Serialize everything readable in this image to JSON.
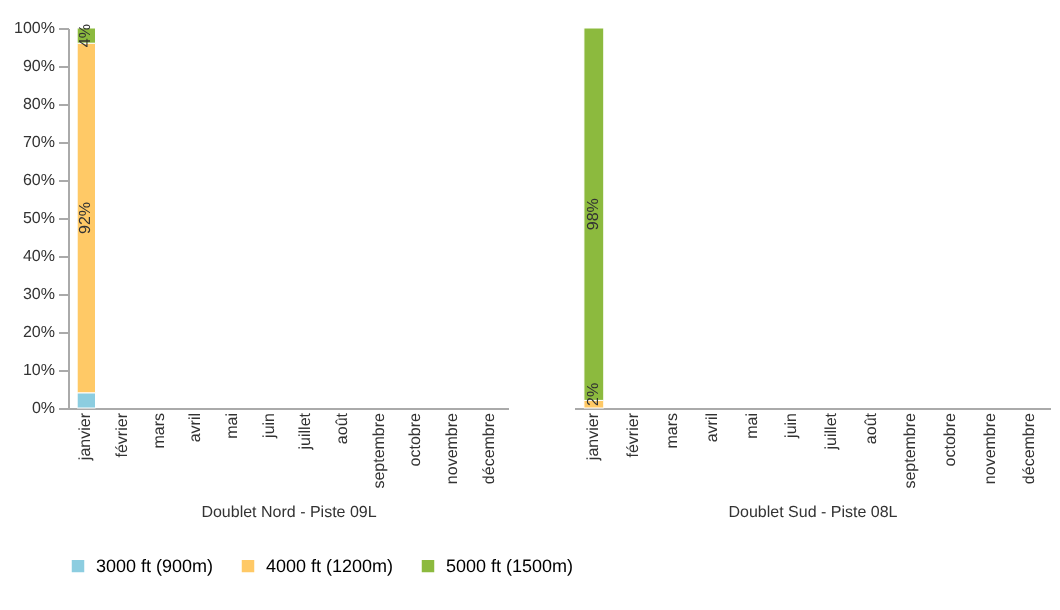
{
  "chart_data": [
    {
      "type": "bar",
      "stacked": true,
      "xlabel": "Doublet Nord - Piste 09L",
      "categories": [
        "janvier",
        "février",
        "mars",
        "avril",
        "mai",
        "juin",
        "juillet",
        "août",
        "septembre",
        "octobre",
        "novembre",
        "décembre"
      ],
      "series": [
        {
          "name": "3000 ft (900m)",
          "color": "#8ccde0",
          "values": [
            4,
            null,
            null,
            null,
            null,
            null,
            null,
            null,
            null,
            null,
            null,
            null
          ],
          "value_labels": [
            null,
            null,
            null,
            null,
            null,
            null,
            null,
            null,
            null,
            null,
            null,
            null
          ]
        },
        {
          "name": "4000 ft (1200m)",
          "color": "#ffc966",
          "values": [
            92,
            null,
            null,
            null,
            null,
            null,
            null,
            null,
            null,
            null,
            null,
            null
          ],
          "value_labels": [
            "92%",
            null,
            null,
            null,
            null,
            null,
            null,
            null,
            null,
            null,
            null,
            null
          ]
        },
        {
          "name": "5000 ft (1500m)",
          "color": "#8cba3e",
          "values": [
            4,
            null,
            null,
            null,
            null,
            null,
            null,
            null,
            null,
            null,
            null,
            null
          ],
          "value_labels": [
            "4%",
            null,
            null,
            null,
            null,
            null,
            null,
            null,
            null,
            null,
            null,
            null
          ]
        }
      ],
      "ylim": [
        0,
        100
      ],
      "yticks": [
        {
          "value": 0,
          "label": "0%"
        },
        {
          "value": 10,
          "label": "10%"
        },
        {
          "value": 20,
          "label": "20%"
        },
        {
          "value": 30,
          "label": "30%"
        },
        {
          "value": 40,
          "label": "40%"
        },
        {
          "value": 50,
          "label": "50%"
        },
        {
          "value": 60,
          "label": "60%"
        },
        {
          "value": 70,
          "label": "70%"
        },
        {
          "value": 80,
          "label": "80%"
        },
        {
          "value": 90,
          "label": "90%"
        },
        {
          "value": 100,
          "label": "100%"
        }
      ],
      "grid": false,
      "legend": "bottom"
    },
    {
      "type": "bar",
      "stacked": true,
      "xlabel": "Doublet Sud - Piste 08L",
      "categories": [
        "janvier",
        "février",
        "mars",
        "avril",
        "mai",
        "juin",
        "juillet",
        "août",
        "septembre",
        "octobre",
        "novembre",
        "décembre"
      ],
      "series": [
        {
          "color": "#8ccde0",
          "values": [
            null,
            null,
            null,
            null,
            null,
            null,
            null,
            null,
            null,
            null,
            null,
            null
          ]
        },
        {
          "color": "#ffc966",
          "values": [
            2,
            null,
            null,
            null,
            null,
            null,
            null,
            null,
            null,
            null,
            null,
            null
          ],
          "value_labels": [
            "2%",
            null,
            null,
            null,
            null,
            null,
            null,
            null,
            null,
            null,
            null,
            null
          ]
        },
        {
          "color": "#8cba3e",
          "values": [
            98,
            null,
            null,
            null,
            null,
            null,
            null,
            null,
            null,
            null,
            null,
            null
          ],
          "value_labels": [
            "98%",
            null,
            null,
            null,
            null,
            null,
            null,
            null,
            null,
            null,
            null,
            null
          ]
        }
      ],
      "ylim": [
        0,
        100
      ],
      "tick_labels": "x"
    }
  ]
}
